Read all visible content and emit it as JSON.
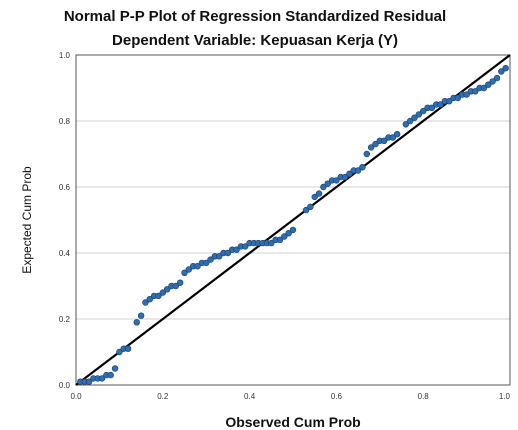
{
  "chart_data": {
    "type": "scatter",
    "title": "Normal P-P Plot of Regression Standardized Residual",
    "subtitle": "Dependent Variable: Kepuasan Kerja (Y)",
    "xlabel": "Observed Cum Prob",
    "ylabel": "Expected Cum Prob",
    "xlim": [
      0,
      1
    ],
    "ylim": [
      0,
      1
    ],
    "xticks": [
      "0.0",
      "0.2",
      "0.4",
      "0.6",
      "0.8",
      "1.0"
    ],
    "yticks": [
      "0.0",
      "0.2",
      "0.4",
      "0.6",
      "0.8",
      "1.0"
    ],
    "grid": true,
    "reference_line": {
      "from": [
        0,
        0
      ],
      "to": [
        1,
        1
      ]
    },
    "points": [
      [
        0.01,
        0.01
      ],
      [
        0.02,
        0.01
      ],
      [
        0.03,
        0.01
      ],
      [
        0.04,
        0.02
      ],
      [
        0.05,
        0.02
      ],
      [
        0.06,
        0.02
      ],
      [
        0.07,
        0.03
      ],
      [
        0.08,
        0.03
      ],
      [
        0.09,
        0.05
      ],
      [
        0.1,
        0.1
      ],
      [
        0.11,
        0.11
      ],
      [
        0.12,
        0.11
      ],
      [
        0.14,
        0.19
      ],
      [
        0.15,
        0.21
      ],
      [
        0.16,
        0.25
      ],
      [
        0.17,
        0.26
      ],
      [
        0.18,
        0.27
      ],
      [
        0.19,
        0.27
      ],
      [
        0.2,
        0.28
      ],
      [
        0.21,
        0.29
      ],
      [
        0.22,
        0.3
      ],
      [
        0.23,
        0.3
      ],
      [
        0.24,
        0.31
      ],
      [
        0.25,
        0.34
      ],
      [
        0.26,
        0.35
      ],
      [
        0.27,
        0.36
      ],
      [
        0.28,
        0.36
      ],
      [
        0.29,
        0.37
      ],
      [
        0.3,
        0.37
      ],
      [
        0.31,
        0.38
      ],
      [
        0.32,
        0.39
      ],
      [
        0.33,
        0.39
      ],
      [
        0.34,
        0.4
      ],
      [
        0.35,
        0.4
      ],
      [
        0.36,
        0.41
      ],
      [
        0.37,
        0.41
      ],
      [
        0.38,
        0.42
      ],
      [
        0.39,
        0.42
      ],
      [
        0.4,
        0.43
      ],
      [
        0.41,
        0.43
      ],
      [
        0.42,
        0.43
      ],
      [
        0.43,
        0.43
      ],
      [
        0.44,
        0.43
      ],
      [
        0.45,
        0.43
      ],
      [
        0.46,
        0.44
      ],
      [
        0.47,
        0.44
      ],
      [
        0.48,
        0.45
      ],
      [
        0.49,
        0.46
      ],
      [
        0.5,
        0.47
      ],
      [
        0.53,
        0.53
      ],
      [
        0.54,
        0.54
      ],
      [
        0.55,
        0.57
      ],
      [
        0.56,
        0.58
      ],
      [
        0.57,
        0.6
      ],
      [
        0.58,
        0.61
      ],
      [
        0.59,
        0.62
      ],
      [
        0.6,
        0.62
      ],
      [
        0.61,
        0.63
      ],
      [
        0.62,
        0.63
      ],
      [
        0.63,
        0.64
      ],
      [
        0.64,
        0.65
      ],
      [
        0.65,
        0.65
      ],
      [
        0.66,
        0.66
      ],
      [
        0.67,
        0.7
      ],
      [
        0.68,
        0.72
      ],
      [
        0.69,
        0.73
      ],
      [
        0.7,
        0.74
      ],
      [
        0.71,
        0.74
      ],
      [
        0.72,
        0.75
      ],
      [
        0.73,
        0.75
      ],
      [
        0.74,
        0.76
      ],
      [
        0.76,
        0.79
      ],
      [
        0.77,
        0.8
      ],
      [
        0.78,
        0.81
      ],
      [
        0.79,
        0.82
      ],
      [
        0.8,
        0.83
      ],
      [
        0.81,
        0.84
      ],
      [
        0.82,
        0.84
      ],
      [
        0.83,
        0.85
      ],
      [
        0.84,
        0.85
      ],
      [
        0.85,
        0.86
      ],
      [
        0.86,
        0.86
      ],
      [
        0.87,
        0.87
      ],
      [
        0.88,
        0.87
      ],
      [
        0.89,
        0.88
      ],
      [
        0.9,
        0.88
      ],
      [
        0.91,
        0.89
      ],
      [
        0.92,
        0.89
      ],
      [
        0.93,
        0.9
      ],
      [
        0.94,
        0.9
      ],
      [
        0.95,
        0.91
      ],
      [
        0.96,
        0.92
      ],
      [
        0.97,
        0.93
      ],
      [
        0.98,
        0.95
      ],
      [
        0.99,
        0.96
      ]
    ]
  }
}
